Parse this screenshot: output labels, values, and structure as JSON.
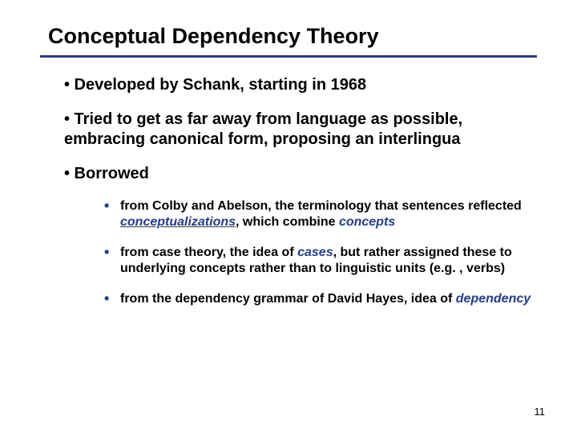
{
  "title": "Conceptual Dependency Theory",
  "rule_color": "#1f3b9b",
  "keyword_color": "#1f3b9b",
  "bullets": {
    "b1": "• Developed by Schank, starting in 1968",
    "b2": "• Tried to get as far away from language as possible, embracing canonical form, proposing an interlingua",
    "b3": "• Borrowed"
  },
  "sub": {
    "s1_pre": " from Colby and Abelson, the terminology that sentences reflected ",
    "s1_k1": "conceptualizations",
    "s1_mid": ", which combine ",
    "s1_k2": "concepts",
    "s2_pre": " from case theory, the idea of ",
    "s2_k1": "cases",
    "s2_post": ", but rather assigned these to underlying concepts rather than to linguistic units (e.g. , verbs)",
    "s3_pre": " from the dependency grammar of David Hayes, idea of ",
    "s3_k1": "dependency"
  },
  "page_number": "11"
}
